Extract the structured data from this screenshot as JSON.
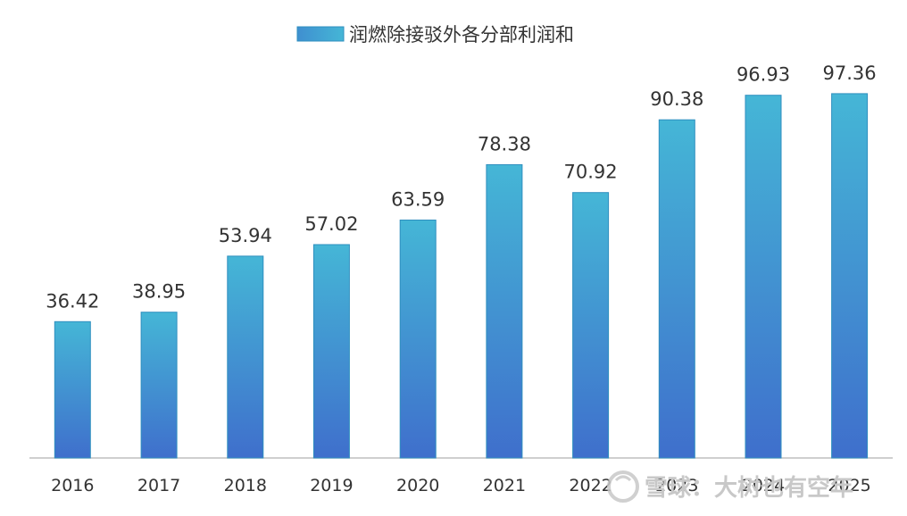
{
  "chart_data": {
    "type": "bar",
    "categories": [
      "2016",
      "2017",
      "2018",
      "2019",
      "2020",
      "2021",
      "2022",
      "2023",
      "2024",
      "2025"
    ],
    "series": [
      {
        "name": "润燃除接驳外各分部利润和",
        "values": [
          36.42,
          38.95,
          53.94,
          57.02,
          63.59,
          78.38,
          70.92,
          90.38,
          96.93,
          97.36
        ]
      }
    ],
    "value_labels": [
      "36.42",
      "38.95",
      "53.94",
      "57.02",
      "63.59",
      "78.38",
      "70.92",
      "90.38",
      "96.93",
      "97.36"
    ],
    "ylim": [
      0,
      120
    ],
    "grid": false,
    "legend_position": "top-center",
    "colors": {
      "bar_top": "#45B6D6",
      "bar_bottom": "#3F6FCC",
      "bar_edge": "#2F8FBF",
      "axis": "#BFBFBF"
    }
  },
  "watermark": {
    "text": "雪球：大树也有空年"
  }
}
